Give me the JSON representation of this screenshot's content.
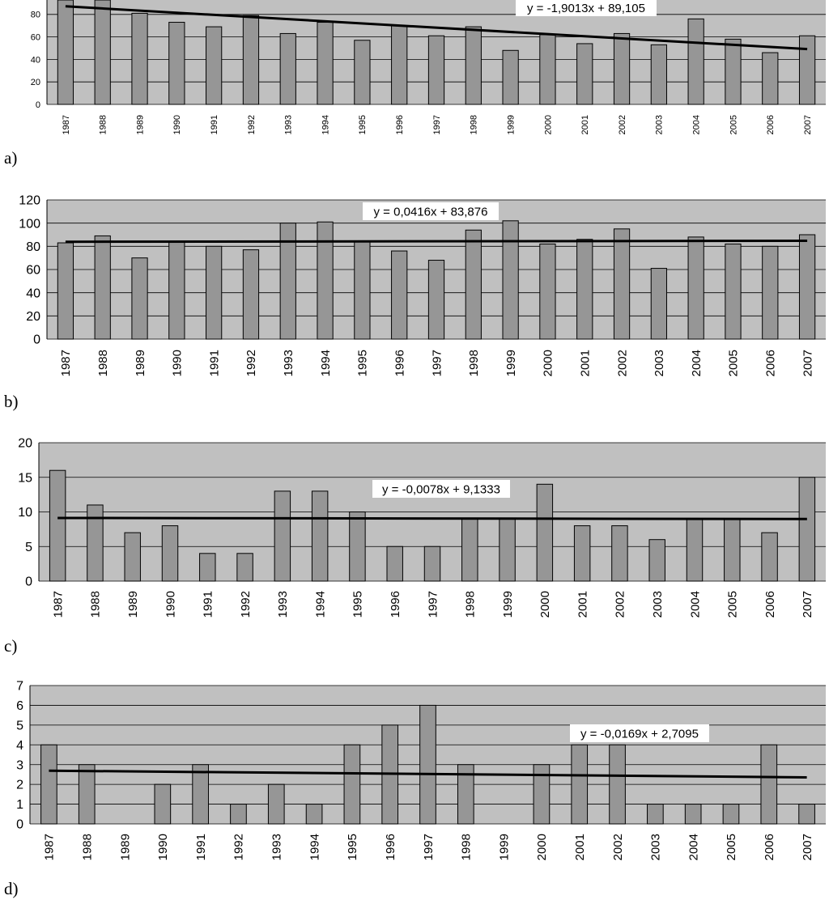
{
  "chart_data": [
    {
      "type": "bar",
      "panel_label": "a)",
      "categories": [
        "1987",
        "1988",
        "1989",
        "1990",
        "1991",
        "1992",
        "1993",
        "1994",
        "1995",
        "1996",
        "1997",
        "1998",
        "1999",
        "2000",
        "2001",
        "2002",
        "2003",
        "2004",
        "2005",
        "2006",
        "2007"
      ],
      "values": [
        96,
        96,
        81,
        73,
        69,
        79,
        63,
        73,
        57,
        70,
        61,
        69,
        48,
        62,
        54,
        63,
        53,
        76,
        58,
        46,
        61
      ],
      "yticks": [
        0,
        20,
        40,
        60,
        80
      ],
      "ylim": [
        0,
        100
      ],
      "trendline": {
        "equation": "y = -1,9013x + 89,105",
        "slope": -1.9013,
        "intercept": 89.105
      },
      "grid": true,
      "plot_background": "#c0c0c0",
      "bar_color": "#969696"
    },
    {
      "type": "bar",
      "panel_label": "b)",
      "categories": [
        "1987",
        "1988",
        "1989",
        "1990",
        "1991",
        "1992",
        "1993",
        "1994",
        "1995",
        "1996",
        "1997",
        "1998",
        "1999",
        "2000",
        "2001",
        "2002",
        "2003",
        "2004",
        "2005",
        "2006",
        "2007"
      ],
      "values": [
        83,
        89,
        70,
        84,
        80,
        77,
        100,
        101,
        84,
        76,
        68,
        94,
        102,
        82,
        86,
        95,
        61,
        88,
        82,
        80,
        90
      ],
      "yticks": [
        0,
        20,
        40,
        60,
        80,
        100,
        120
      ],
      "ylim": [
        0,
        120
      ],
      "trendline": {
        "equation": "y = 0,0416x + 83,876",
        "slope": 0.0416,
        "intercept": 83.876
      },
      "grid": true,
      "plot_background": "#c0c0c0",
      "bar_color": "#969696"
    },
    {
      "type": "bar",
      "panel_label": "c)",
      "categories": [
        "1987",
        "1988",
        "1989",
        "1990",
        "1991",
        "1992",
        "1993",
        "1994",
        "1995",
        "1996",
        "1997",
        "1998",
        "1999",
        "2000",
        "2001",
        "2002",
        "2003",
        "2004",
        "2005",
        "2006",
        "2007"
      ],
      "values": [
        16,
        11,
        7,
        8,
        4,
        4,
        13,
        13,
        10,
        5,
        5,
        9,
        9,
        14,
        8,
        8,
        6,
        9,
        9,
        7,
        15
      ],
      "yticks": [
        0,
        5,
        10,
        15,
        20
      ],
      "ylim": [
        0,
        20
      ],
      "trendline": {
        "equation": "y = -0,0078x + 9,1333",
        "slope": -0.0078,
        "intercept": 9.1333
      },
      "grid": true,
      "plot_background": "#c0c0c0",
      "bar_color": "#969696"
    },
    {
      "type": "bar",
      "panel_label": "d)",
      "categories": [
        "1987",
        "1988",
        "1989",
        "1990",
        "1991",
        "1992",
        "1993",
        "1994",
        "1995",
        "1996",
        "1997",
        "1998",
        "1999",
        "2000",
        "2001",
        "2002",
        "2003",
        "2004",
        "2005",
        "2006",
        "2007"
      ],
      "values": [
        4,
        3,
        0,
        2,
        3,
        1,
        2,
        1,
        4,
        5,
        6,
        3,
        0,
        3,
        4,
        4,
        1,
        1,
        1,
        4,
        1
      ],
      "yticks": [
        0,
        1,
        2,
        3,
        4,
        5,
        6,
        7
      ],
      "ylim": [
        0,
        7
      ],
      "trendline": {
        "equation": "y = -0,0169x + 2,7095",
        "slope": -0.0169,
        "intercept": 2.7095
      },
      "grid": true,
      "plot_background": "#c0c0c0",
      "bar_color": "#969696"
    }
  ]
}
